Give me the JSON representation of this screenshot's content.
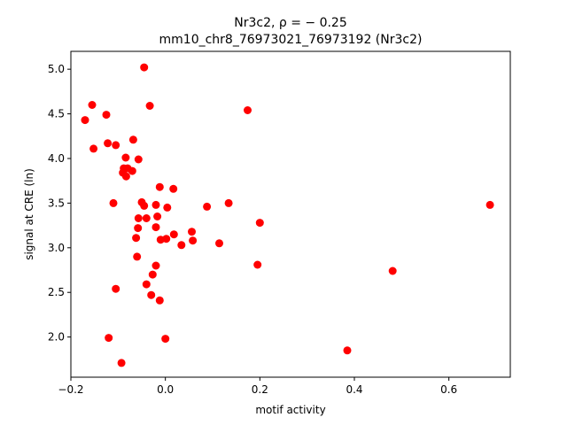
{
  "chart_data": {
    "type": "scatter",
    "title_line1": "Nr3c2, ρ = − 0.25",
    "title_line2": "mm10_chr8_76973021_76973192 (Nr3c2)",
    "xlabel": "motif activity",
    "ylabel": "signal at CRE (ln)",
    "xlim": [
      -0.2,
      0.73
    ],
    "ylim": [
      1.55,
      5.2
    ],
    "xticks": [
      -0.2,
      0.0,
      0.2,
      0.4,
      0.6
    ],
    "xtick_labels": [
      "−0.2",
      "0.0",
      "0.2",
      "0.4",
      "0.6"
    ],
    "yticks": [
      2.0,
      2.5,
      3.0,
      3.5,
      4.0,
      4.5,
      5.0
    ],
    "ytick_labels": [
      "2.0",
      "2.5",
      "3.0",
      "3.5",
      "4.0",
      "4.5",
      "5.0"
    ],
    "grid": false,
    "marker_color": "#ff0000",
    "points": [
      {
        "x": -0.045,
        "y": 5.02
      },
      {
        "x": -0.033,
        "y": 4.59
      },
      {
        "x": -0.155,
        "y": 4.6
      },
      {
        "x": -0.17,
        "y": 4.43
      },
      {
        "x": -0.125,
        "y": 4.49
      },
      {
        "x": 0.174,
        "y": 4.54
      },
      {
        "x": -0.068,
        "y": 4.21
      },
      {
        "x": -0.122,
        "y": 4.17
      },
      {
        "x": -0.105,
        "y": 4.15
      },
      {
        "x": -0.152,
        "y": 4.11
      },
      {
        "x": -0.084,
        "y": 4.01
      },
      {
        "x": -0.057,
        "y": 3.99
      },
      {
        "x": -0.088,
        "y": 3.89
      },
      {
        "x": -0.08,
        "y": 3.89
      },
      {
        "x": -0.07,
        "y": 3.86
      },
      {
        "x": -0.09,
        "y": 3.84
      },
      {
        "x": -0.083,
        "y": 3.8
      },
      {
        "x": -0.012,
        "y": 3.68
      },
      {
        "x": 0.017,
        "y": 3.66
      },
      {
        "x": -0.05,
        "y": 3.51
      },
      {
        "x": -0.11,
        "y": 3.5
      },
      {
        "x": 0.134,
        "y": 3.5
      },
      {
        "x": -0.045,
        "y": 3.47
      },
      {
        "x": -0.02,
        "y": 3.48
      },
      {
        "x": 0.687,
        "y": 3.48
      },
      {
        "x": 0.004,
        "y": 3.45
      },
      {
        "x": 0.088,
        "y": 3.46
      },
      {
        "x": -0.057,
        "y": 3.33
      },
      {
        "x": -0.04,
        "y": 3.33
      },
      {
        "x": -0.017,
        "y": 3.35
      },
      {
        "x": 0.2,
        "y": 3.28
      },
      {
        "x": -0.058,
        "y": 3.22
      },
      {
        "x": -0.02,
        "y": 3.23
      },
      {
        "x": 0.018,
        "y": 3.15
      },
      {
        "x": 0.056,
        "y": 3.18
      },
      {
        "x": -0.062,
        "y": 3.11
      },
      {
        "x": -0.01,
        "y": 3.09
      },
      {
        "x": 0.002,
        "y": 3.1
      },
      {
        "x": 0.058,
        "y": 3.08
      },
      {
        "x": 0.114,
        "y": 3.05
      },
      {
        "x": 0.034,
        "y": 3.03
      },
      {
        "x": -0.06,
        "y": 2.9
      },
      {
        "x": -0.02,
        "y": 2.8
      },
      {
        "x": 0.195,
        "y": 2.81
      },
      {
        "x": 0.481,
        "y": 2.74
      },
      {
        "x": -0.027,
        "y": 2.7
      },
      {
        "x": -0.04,
        "y": 2.59
      },
      {
        "x": -0.105,
        "y": 2.54
      },
      {
        "x": -0.03,
        "y": 2.47
      },
      {
        "x": -0.012,
        "y": 2.41
      },
      {
        "x": -0.12,
        "y": 1.99
      },
      {
        "x": 0.0,
        "y": 1.98
      },
      {
        "x": 0.385,
        "y": 1.85
      },
      {
        "x": -0.093,
        "y": 1.71
      }
    ]
  }
}
